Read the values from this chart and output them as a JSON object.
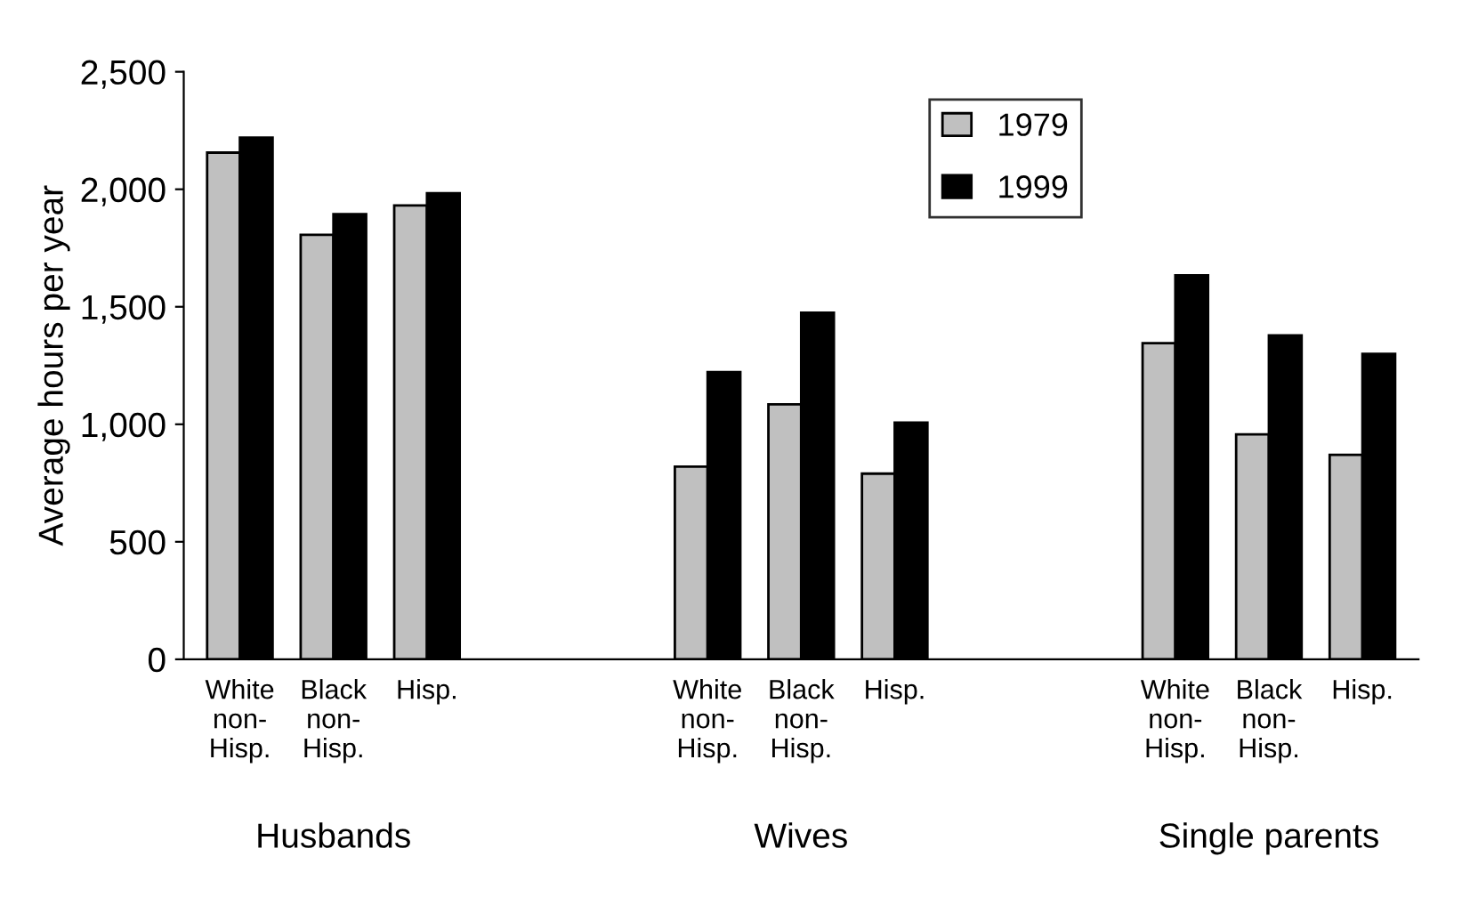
{
  "chart_data": {
    "type": "bar",
    "ylabel": "Average hours per year",
    "categories": [
      "White\nnon-\nHisp.",
      "Black\nnon-\nHisp.",
      "Hisp.",
      null,
      null,
      "White\nnon-\nHisp.",
      "Black\nnon-\nHisp.",
      "Hisp.",
      null,
      null,
      "White\nnon-\nHisp.",
      "Black\nnon-\nHisp.",
      "Hisp."
    ],
    "series": [
      {
        "name": "1979",
        "color": "#c0c0c0",
        "values": [
          2156,
          1806,
          1931,
          null,
          null,
          820,
          1085,
          790,
          null,
          null,
          1345,
          957,
          870
        ]
      },
      {
        "name": "1999",
        "color": "#000000",
        "values": [
          2220,
          1894,
          1983,
          null,
          null,
          1222,
          1475,
          1007,
          null,
          null,
          1634,
          1378,
          1300
        ]
      }
    ],
    "annotations": [
      "Husbands",
      "Wives",
      "Single parents"
    ],
    "ylim": [
      0,
      2500
    ],
    "yticks": [
      0,
      {
        "value": 500,
        "label": "500"
      },
      {
        "value": 1000,
        "label": "1,000"
      },
      {
        "value": 1500,
        "label": "1,500"
      },
      {
        "value": 2000,
        "label": "2,000"
      },
      {
        "value": 2500,
        "label": "2,500"
      }
    ],
    "grid": false,
    "legend": "top right"
  }
}
